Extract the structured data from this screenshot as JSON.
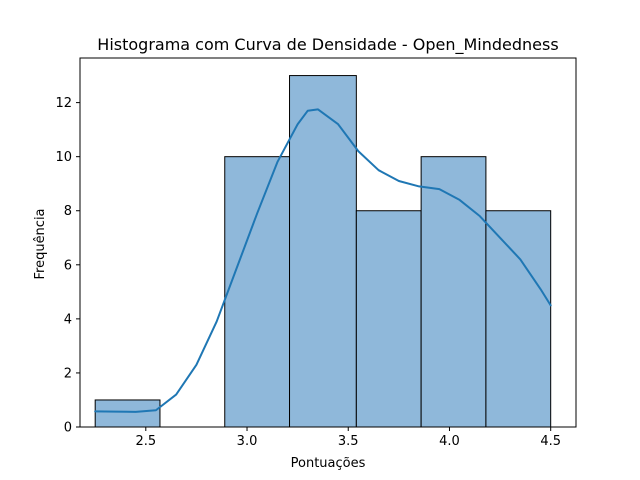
{
  "chart_data": {
    "type": "bar",
    "title": "Histograma com Curva de Densidade - Open_Mindedness",
    "xlabel": "Pontuações",
    "ylabel": "Frequência",
    "xlim": [
      2.175,
      4.625
    ],
    "ylim": [
      0,
      13.65
    ],
    "xticks": [
      2.5,
      3.0,
      3.5,
      4.0,
      4.5
    ],
    "xtick_labels": [
      "2.5",
      "3.0",
      "3.5",
      "4.0",
      "4.5"
    ],
    "yticks": [
      0,
      2,
      4,
      6,
      8,
      10,
      12
    ],
    "ytick_labels": [
      "0",
      "2",
      "4",
      "6",
      "8",
      "10",
      "12"
    ],
    "grid": false,
    "bins": [
      {
        "x0": 2.25,
        "x1": 2.57,
        "count": 1
      },
      {
        "x0": 2.57,
        "x1": 2.89,
        "count": 0
      },
      {
        "x0": 2.89,
        "x1": 3.21,
        "count": 10
      },
      {
        "x0": 3.21,
        "x1": 3.54,
        "count": 13
      },
      {
        "x0": 3.54,
        "x1": 3.86,
        "count": 8
      },
      {
        "x0": 3.86,
        "x1": 4.18,
        "count": 10
      },
      {
        "x0": 4.18,
        "x1": 4.5,
        "count": 8
      }
    ],
    "density_curve": {
      "x": [
        2.25,
        2.35,
        2.45,
        2.55,
        2.65,
        2.75,
        2.85,
        2.95,
        3.05,
        3.15,
        3.25,
        3.3,
        3.35,
        3.45,
        3.55,
        3.65,
        3.75,
        3.85,
        3.95,
        4.05,
        4.15,
        4.25,
        4.35,
        4.45,
        4.5
      ],
      "y": [
        0.58,
        0.57,
        0.56,
        0.62,
        1.2,
        2.3,
        3.9,
        5.9,
        7.9,
        9.8,
        11.2,
        11.7,
        11.75,
        11.2,
        10.2,
        9.5,
        9.1,
        8.9,
        8.8,
        8.4,
        7.8,
        7.0,
        6.2,
        5.1,
        4.5
      ]
    },
    "colors": {
      "bar_fill": "#8fb8da",
      "bar_edge": "#000000",
      "curve": "#1f77b4"
    }
  }
}
